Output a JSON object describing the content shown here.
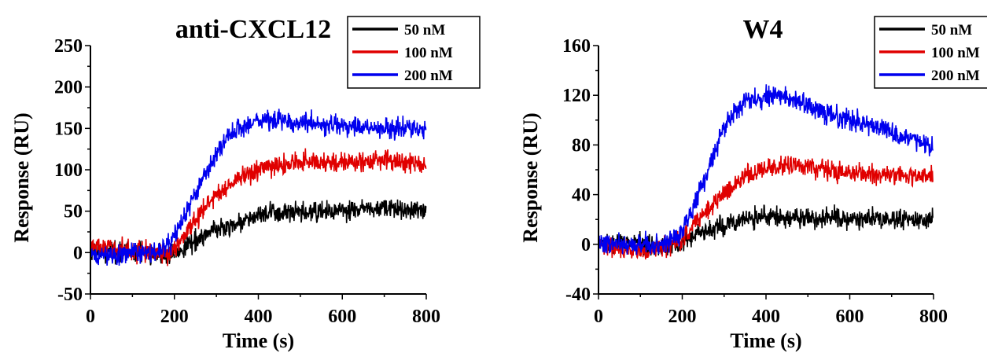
{
  "chart_data": [
    {
      "type": "line",
      "title": "anti-CXCL12",
      "xlabel": "Time (s)",
      "ylabel": "Response (RU)",
      "xlim": [
        0,
        800
      ],
      "ylim": [
        -50,
        250
      ],
      "xticks": [
        0,
        200,
        400,
        600,
        800
      ],
      "yticks": [
        -50,
        0,
        50,
        100,
        150,
        200,
        250
      ],
      "grid": false,
      "legend_position": "top-right",
      "series": [
        {
          "name": "50 nM",
          "color": "#000000",
          "noise": 6,
          "x": [
            0,
            50,
            100,
            150,
            180,
            200,
            250,
            300,
            350,
            400,
            450,
            500,
            550,
            600,
            650,
            700,
            750,
            800
          ],
          "y": [
            0,
            2,
            1,
            0,
            -5,
            0,
            15,
            28,
            35,
            45,
            48,
            47,
            49,
            50,
            52,
            53,
            52,
            52
          ]
        },
        {
          "name": "100 nM",
          "color": "#e00000",
          "noise": 6,
          "x": [
            0,
            50,
            100,
            150,
            180,
            200,
            250,
            300,
            350,
            400,
            450,
            500,
            550,
            600,
            650,
            700,
            750,
            800
          ],
          "y": [
            8,
            5,
            3,
            0,
            -3,
            5,
            40,
            70,
            88,
            100,
            105,
            110,
            110,
            108,
            110,
            112,
            108,
            106
          ]
        },
        {
          "name": "200 nM",
          "color": "#0000ee",
          "noise": 6,
          "x": [
            0,
            50,
            100,
            150,
            180,
            200,
            250,
            300,
            350,
            400,
            450,
            500,
            550,
            600,
            650,
            700,
            750,
            800
          ],
          "y": [
            -5,
            -3,
            0,
            0,
            5,
            20,
            70,
            120,
            150,
            160,
            160,
            158,
            155,
            152,
            152,
            150,
            150,
            150
          ]
        }
      ]
    },
    {
      "type": "line",
      "title": "W4",
      "xlabel": "Time (s)",
      "ylabel": "Response (RU)",
      "xlim": [
        0,
        800
      ],
      "ylim": [
        -40,
        160
      ],
      "xticks": [
        0,
        200,
        400,
        600,
        800
      ],
      "yticks": [
        -40,
        0,
        40,
        80,
        120,
        160
      ],
      "grid": false,
      "legend_position": "top-right",
      "series": [
        {
          "name": "50 nM",
          "color": "#000000",
          "noise": 4,
          "x": [
            0,
            50,
            100,
            150,
            200,
            250,
            300,
            350,
            400,
            450,
            500,
            550,
            600,
            650,
            700,
            750,
            800
          ],
          "y": [
            0,
            2,
            0,
            -2,
            2,
            10,
            16,
            20,
            23,
            22,
            21,
            22,
            22,
            21,
            20,
            20,
            20
          ]
        },
        {
          "name": "100 nM",
          "color": "#e00000",
          "noise": 4,
          "x": [
            0,
            50,
            100,
            150,
            200,
            250,
            300,
            350,
            400,
            450,
            500,
            550,
            600,
            650,
            700,
            750,
            800
          ],
          "y": [
            0,
            -3,
            -5,
            -3,
            3,
            25,
            42,
            55,
            62,
            63,
            62,
            60,
            58,
            57,
            56,
            55,
            55
          ]
        },
        {
          "name": "200 nM",
          "color": "#0000ee",
          "noise": 4,
          "x": [
            0,
            50,
            100,
            150,
            200,
            250,
            300,
            350,
            400,
            450,
            500,
            550,
            600,
            650,
            700,
            750,
            800
          ],
          "y": [
            0,
            0,
            0,
            0,
            10,
            50,
            95,
            115,
            120,
            118,
            112,
            105,
            100,
            95,
            90,
            85,
            78
          ]
        }
      ]
    }
  ]
}
